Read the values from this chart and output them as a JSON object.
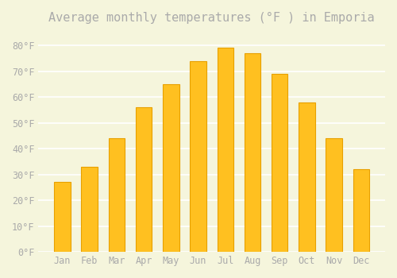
{
  "title": "Average monthly temperatures (°F ) in Emporia",
  "months": [
    "Jan",
    "Feb",
    "Mar",
    "Apr",
    "May",
    "Jun",
    "Jul",
    "Aug",
    "Sep",
    "Oct",
    "Nov",
    "Dec"
  ],
  "values": [
    27,
    33,
    44,
    56,
    65,
    74,
    79,
    77,
    69,
    58,
    44,
    32
  ],
  "bar_color": "#FFC020",
  "bar_edge_color": "#E8A000",
  "background_color": "#F5F5DC",
  "grid_color": "#FFFFFF",
  "text_color": "#AAAAAA",
  "ylim": [
    0,
    85
  ],
  "yticks": [
    0,
    10,
    20,
    30,
    40,
    50,
    60,
    70,
    80
  ],
  "title_fontsize": 11,
  "tick_fontsize": 8.5
}
